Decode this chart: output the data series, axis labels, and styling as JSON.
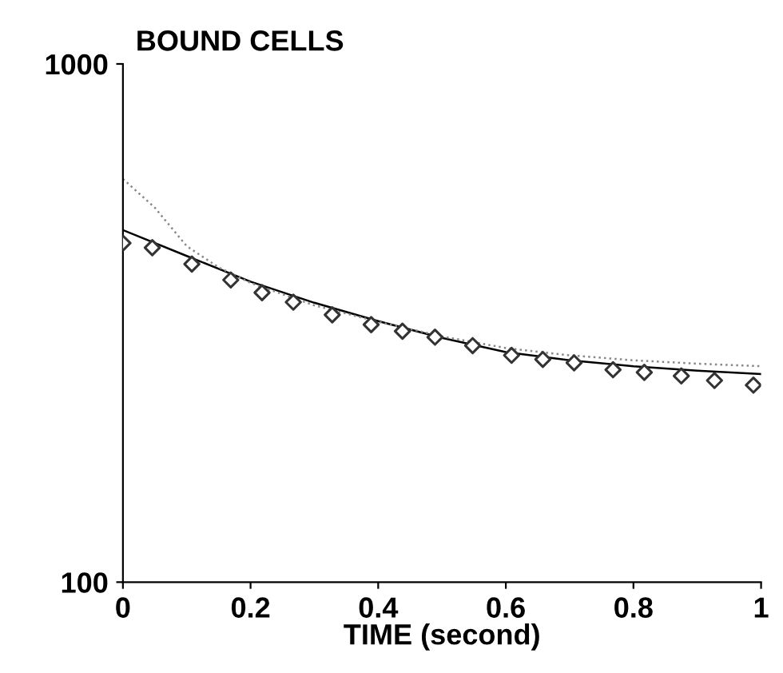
{
  "chart_data": {
    "type": "scatter",
    "title": "BOUND CELLS",
    "xlabel": "TIME (second)",
    "xlim": [
      0,
      1
    ],
    "xticks": [
      0,
      0.2,
      0.4,
      0.6,
      0.8,
      1
    ],
    "ylim": [
      100,
      1000
    ],
    "yticks": [
      100,
      1000
    ],
    "log": "y",
    "grid": false,
    "legend": false,
    "series": [
      {
        "color": "#333333",
        "marker": "diamond",
        "x": [
          0,
          0.046,
          0.108,
          0.169,
          0.218,
          0.267,
          0.328,
          0.389,
          0.438,
          0.489,
          0.548,
          0.609,
          0.658,
          0.707,
          0.768,
          0.817,
          0.875,
          0.927,
          0.988
        ],
        "values": [
          451,
          442,
          411,
          383,
          362,
          347,
          328,
          314,
          305,
          297,
          286,
          274,
          269,
          265,
          257,
          254,
          250,
          245,
          240
        ]
      },
      {
        "type": "line",
        "color": "#000000",
        "line_style": "solid",
        "x": [
          0,
          0.1,
          0.2,
          0.3,
          0.4,
          0.5,
          0.6,
          0.7,
          0.8,
          0.9,
          1
        ],
        "values": [
          478,
          426,
          380,
          346,
          319,
          296,
          278,
          268,
          261,
          256,
          252
        ]
      },
      {
        "type": "line",
        "color": "#888888",
        "line_style": "dotted",
        "x": [
          0,
          0.05,
          0.1,
          0.15,
          0.2,
          0.3,
          0.4,
          0.5,
          0.6,
          0.7,
          0.8,
          0.9,
          1
        ],
        "values": [
          600,
          528,
          445,
          405,
          378,
          342,
          318,
          298,
          283,
          274,
          268,
          264,
          261
        ]
      }
    ]
  }
}
